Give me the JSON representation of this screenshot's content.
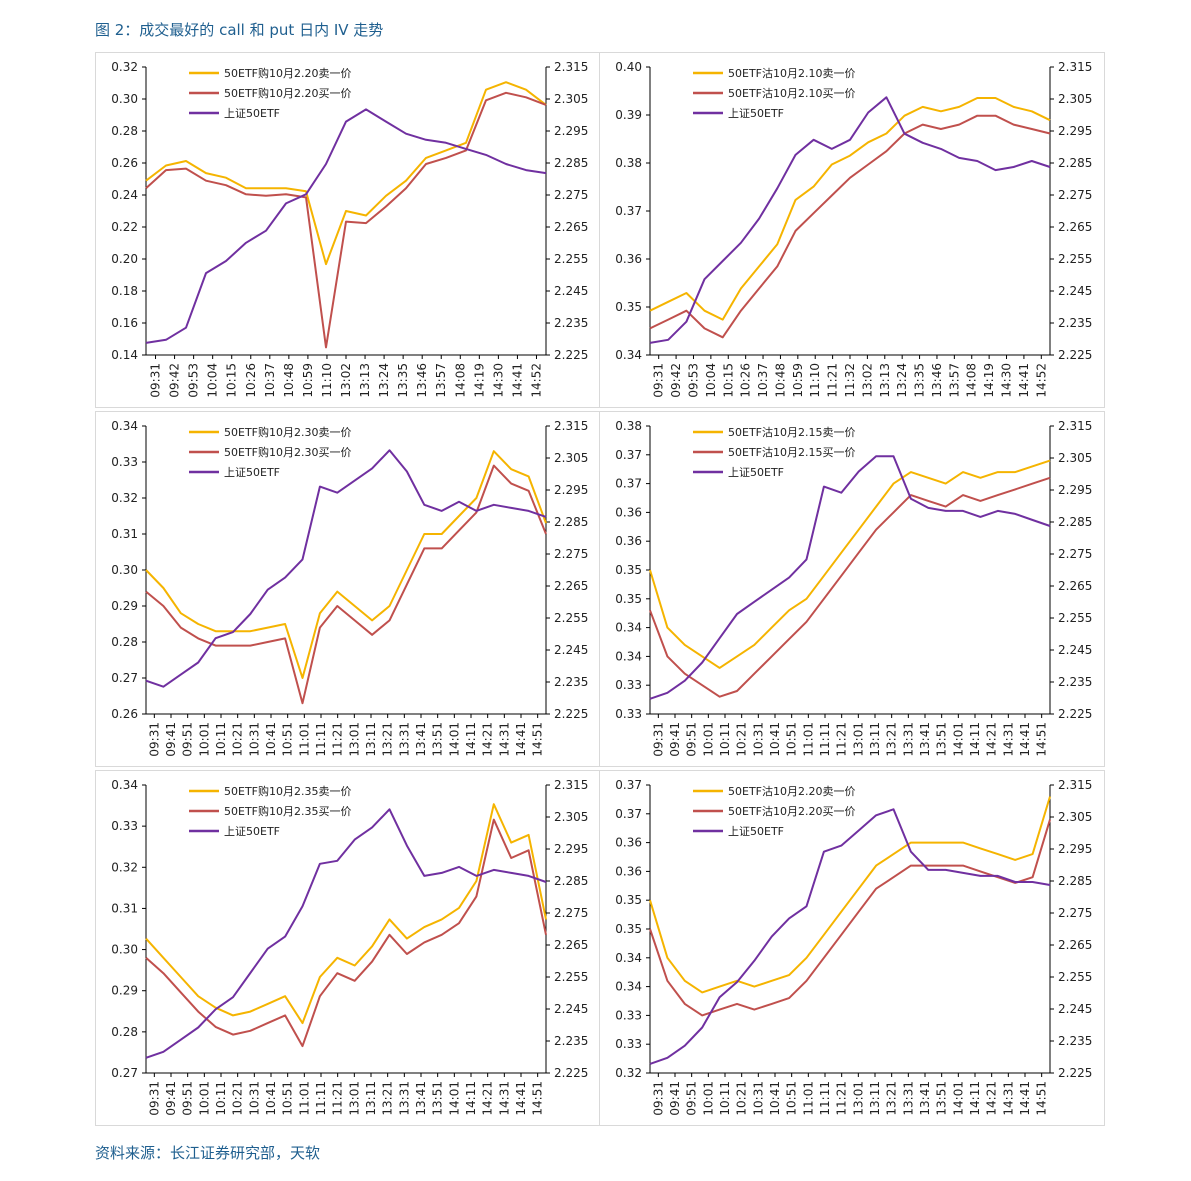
{
  "figure": {
    "title": "图 2：成交最好的 call 和 put 日内 IV 走势",
    "source": "资料来源：长江证券研究部，天软"
  },
  "colors": {
    "sell": "#F5B400",
    "buy": "#C0504D",
    "etf": "#7030A0"
  },
  "chart_data": [
    {
      "type": "line",
      "legend": [
        "50ETF购10月2.20卖一价",
        "50ETF购10月2.20买一价",
        "上证50ETF"
      ],
      "x_ticks": [
        "09:31",
        "09:42",
        "09:53",
        "10:04",
        "10:15",
        "10:26",
        "10:37",
        "10:48",
        "10:59",
        "11:10",
        "13:02",
        "13:13",
        "13:24",
        "13:35",
        "13:46",
        "13:57",
        "14:08",
        "14:19",
        "14:30",
        "14:41",
        "14:52"
      ],
      "ylim_left": [
        0.14,
        0.33
      ],
      "yticks_left": [
        "0.14",
        "0.16",
        "0.18",
        "0.20",
        "0.22",
        "0.24",
        "0.26",
        "0.28",
        "0.30",
        "0.32"
      ],
      "ylim_right": [
        2.225,
        2.32
      ],
      "yticks_right": [
        "2.225",
        "2.235",
        "2.245",
        "2.255",
        "2.265",
        "2.275",
        "2.285",
        "2.295",
        "2.305",
        "2.315"
      ],
      "series": [
        {
          "name": "50ETF购10月2.20卖一价",
          "axis": "left",
          "values": [
            0.255,
            0.265,
            0.268,
            0.26,
            0.257,
            0.25,
            0.25,
            0.25,
            0.248,
            0.2,
            0.235,
            0.232,
            0.245,
            0.255,
            0.27,
            0.275,
            0.28,
            0.315,
            0.32,
            0.315,
            0.305
          ]
        },
        {
          "name": "50ETF购10月2.20买一价",
          "axis": "left",
          "values": [
            0.25,
            0.262,
            0.263,
            0.255,
            0.252,
            0.246,
            0.245,
            0.246,
            0.244,
            0.145,
            0.228,
            0.227,
            0.238,
            0.25,
            0.266,
            0.27,
            0.275,
            0.308,
            0.313,
            0.31,
            0.305
          ]
        },
        {
          "name": "上证50ETF",
          "axis": "right",
          "values": [
            2.229,
            2.23,
            2.234,
            2.252,
            2.256,
            2.262,
            2.266,
            2.275,
            2.278,
            2.288,
            2.302,
            2.306,
            2.302,
            2.298,
            2.296,
            2.295,
            2.293,
            2.291,
            2.288,
            2.286,
            2.285
          ]
        }
      ]
    },
    {
      "type": "line",
      "legend": [
        "50ETF沽10月2.10卖一价",
        "50ETF沽10月2.10买一价",
        "上证50ETF"
      ],
      "x_ticks": [
        "09:31",
        "09:42",
        "09:53",
        "10:04",
        "10:15",
        "10:26",
        "10:37",
        "10:48",
        "10:59",
        "11:10",
        "11:21",
        "11:32",
        "13:02",
        "13:13",
        "13:24",
        "13:35",
        "13:46",
        "13:57",
        "14:08",
        "14:19",
        "14:30",
        "14:41",
        "14:52"
      ],
      "ylim_left": [
        0.34,
        0.405
      ],
      "yticks_left": [
        "0.34",
        "0.35",
        "0.36",
        "0.37",
        "0.38",
        "0.39",
        "0.40"
      ],
      "ylim_right": [
        2.225,
        2.32
      ],
      "yticks_right": [
        "2.225",
        "2.235",
        "2.245",
        "2.255",
        "2.265",
        "2.275",
        "2.285",
        "2.295",
        "2.305",
        "2.315"
      ],
      "series": [
        {
          "name": "50ETF沽10月2.10卖一价",
          "axis": "left",
          "values": [
            0.35,
            0.352,
            0.354,
            0.35,
            0.348,
            0.355,
            0.36,
            0.365,
            0.375,
            0.378,
            0.383,
            0.385,
            0.388,
            0.39,
            0.394,
            0.396,
            0.395,
            0.396,
            0.398,
            0.398,
            0.396,
            0.395,
            0.393
          ]
        },
        {
          "name": "50ETF沽10月2.10买一价",
          "axis": "left",
          "values": [
            0.346,
            0.348,
            0.35,
            0.346,
            0.344,
            0.35,
            0.355,
            0.36,
            0.368,
            0.372,
            0.376,
            0.38,
            0.383,
            0.386,
            0.39,
            0.392,
            0.391,
            0.392,
            0.394,
            0.394,
            0.392,
            0.391,
            0.39
          ]
        },
        {
          "name": "上证50ETF",
          "axis": "right",
          "values": [
            2.229,
            2.23,
            2.236,
            2.25,
            2.256,
            2.262,
            2.27,
            2.28,
            2.291,
            2.296,
            2.293,
            2.296,
            2.305,
            2.31,
            2.298,
            2.295,
            2.293,
            2.29,
            2.289,
            2.286,
            2.287,
            2.289,
            2.287
          ]
        }
      ]
    },
    {
      "type": "line",
      "legend": [
        "50ETF购10月2.30卖一价",
        "50ETF购10月2.30买一价",
        "上证50ETF"
      ],
      "x_ticks": [
        "09:31",
        "09:41",
        "09:51",
        "10:01",
        "10:11",
        "10:21",
        "10:31",
        "10:41",
        "10:51",
        "11:01",
        "11:11",
        "11:21",
        "13:01",
        "13:11",
        "13:21",
        "13:31",
        "13:41",
        "13:51",
        "14:01",
        "14:11",
        "14:21",
        "14:31",
        "14:41",
        "14:51"
      ],
      "ylim_left": [
        0.26,
        0.34
      ],
      "yticks_left": [
        "0.26",
        "0.27",
        "0.28",
        "0.29",
        "0.30",
        "0.31",
        "0.32",
        "0.33",
        "0.34"
      ],
      "ylim_right": [
        2.225,
        2.32
      ],
      "yticks_right": [
        "2.225",
        "2.235",
        "2.245",
        "2.255",
        "2.265",
        "2.275",
        "2.285",
        "2.295",
        "2.305",
        "2.315"
      ],
      "series": [
        {
          "name": "50ETF购10月2.30卖一价",
          "axis": "left",
          "values": [
            0.3,
            0.295,
            0.288,
            0.285,
            0.283,
            0.283,
            0.283,
            0.284,
            0.285,
            0.27,
            0.288,
            0.294,
            0.29,
            0.286,
            0.29,
            0.3,
            0.31,
            0.31,
            0.315,
            0.32,
            0.333,
            0.328,
            0.326,
            0.313
          ]
        },
        {
          "name": "50ETF购10月2.30买一价",
          "axis": "left",
          "values": [
            0.294,
            0.29,
            0.284,
            0.281,
            0.279,
            0.279,
            0.279,
            0.28,
            0.281,
            0.263,
            0.284,
            0.29,
            0.286,
            0.282,
            0.286,
            0.296,
            0.306,
            0.306,
            0.311,
            0.316,
            0.329,
            0.324,
            0.322,
            0.31
          ]
        },
        {
          "name": "上证50ETF",
          "axis": "right",
          "values": [
            2.236,
            2.234,
            2.238,
            2.242,
            2.25,
            2.252,
            2.258,
            2.266,
            2.27,
            2.276,
            2.3,
            2.298,
            2.302,
            2.306,
            2.312,
            2.305,
            2.294,
            2.292,
            2.295,
            2.292,
            2.294,
            2.293,
            2.292,
            2.29
          ]
        }
      ]
    },
    {
      "type": "line",
      "legend": [
        "50ETF沽10月2.15卖一价",
        "50ETF沽10月2.15买一价",
        "上证50ETF"
      ],
      "x_ticks": [
        "09:31",
        "09:41",
        "09:51",
        "10:01",
        "10:11",
        "10:21",
        "10:31",
        "10:41",
        "10:51",
        "11:01",
        "11:11",
        "11:21",
        "13:01",
        "13:11",
        "13:21",
        "13:31",
        "13:41",
        "13:51",
        "14:01",
        "14:11",
        "14:21",
        "14:31",
        "14:41",
        "14:51"
      ],
      "ylim_left": [
        0.33,
        0.38
      ],
      "yticks_left": [
        "0.33",
        "0.33",
        "0.34",
        "0.34",
        "0.35",
        "0.35",
        "0.36",
        "0.36",
        "0.37",
        "0.37",
        "0.38"
      ],
      "ylim_right": [
        2.225,
        2.32
      ],
      "yticks_right": [
        "2.225",
        "2.235",
        "2.245",
        "2.255",
        "2.265",
        "2.275",
        "2.285",
        "2.295",
        "2.305",
        "2.315"
      ],
      "series": [
        {
          "name": "50ETF沽10月2.15卖一价",
          "axis": "left",
          "values": [
            0.355,
            0.345,
            0.342,
            0.34,
            0.338,
            0.34,
            0.342,
            0.345,
            0.348,
            0.35,
            0.354,
            0.358,
            0.362,
            0.366,
            0.37,
            0.372,
            0.371,
            0.37,
            0.372,
            0.371,
            0.372,
            0.372,
            0.373,
            0.374
          ]
        },
        {
          "name": "50ETF沽10月2.15买一价",
          "axis": "left",
          "values": [
            0.348,
            0.34,
            0.337,
            0.335,
            0.333,
            0.334,
            0.337,
            0.34,
            0.343,
            0.346,
            0.35,
            0.354,
            0.358,
            0.362,
            0.365,
            0.368,
            0.367,
            0.366,
            0.368,
            0.367,
            0.368,
            0.369,
            0.37,
            0.371
          ]
        },
        {
          "name": "上证50ETF",
          "axis": "right",
          "values": [
            2.23,
            2.232,
            2.236,
            2.242,
            2.25,
            2.258,
            2.262,
            2.266,
            2.27,
            2.276,
            2.3,
            2.298,
            2.305,
            2.31,
            2.31,
            2.296,
            2.293,
            2.292,
            2.292,
            2.29,
            2.292,
            2.291,
            2.289,
            2.287
          ]
        }
      ]
    },
    {
      "type": "line",
      "legend": [
        "50ETF购10月2.35卖一价",
        "50ETF购10月2.35买一价",
        "上证50ETF"
      ],
      "x_ticks": [
        "09:31",
        "09:41",
        "09:51",
        "10:01",
        "10:11",
        "10:21",
        "10:31",
        "10:41",
        "10:51",
        "11:01",
        "11:11",
        "11:21",
        "13:01",
        "13:11",
        "13:21",
        "13:31",
        "13:41",
        "13:51",
        "14:01",
        "14:11",
        "14:21",
        "14:31",
        "14:41",
        "14:51"
      ],
      "ylim_left": [
        0.27,
        0.345
      ],
      "yticks_left": [
        "0.27",
        "0.28",
        "0.29",
        "0.30",
        "0.31",
        "0.32",
        "0.33",
        "0.34"
      ],
      "ylim_right": [
        2.225,
        2.32
      ],
      "yticks_right": [
        "2.225",
        "2.235",
        "2.245",
        "2.255",
        "2.265",
        "2.275",
        "2.285",
        "2.295",
        "2.305",
        "2.315"
      ],
      "series": [
        {
          "name": "50ETF购10月2.35卖一价",
          "axis": "left",
          "values": [
            0.305,
            0.3,
            0.295,
            0.29,
            0.287,
            0.285,
            0.286,
            0.288,
            0.29,
            0.283,
            0.295,
            0.3,
            0.298,
            0.303,
            0.31,
            0.305,
            0.308,
            0.31,
            0.313,
            0.32,
            0.34,
            0.33,
            0.332,
            0.31
          ]
        },
        {
          "name": "50ETF购10月2.35买一价",
          "axis": "left",
          "values": [
            0.3,
            0.296,
            0.291,
            0.286,
            0.282,
            0.28,
            0.281,
            0.283,
            0.285,
            0.277,
            0.29,
            0.296,
            0.294,
            0.299,
            0.306,
            0.301,
            0.304,
            0.306,
            0.309,
            0.316,
            0.336,
            0.326,
            0.328,
            0.306
          ]
        },
        {
          "name": "上证50ETF",
          "axis": "right",
          "values": [
            2.23,
            2.232,
            2.236,
            2.24,
            2.246,
            2.25,
            2.258,
            2.266,
            2.27,
            2.28,
            2.294,
            2.295,
            2.302,
            2.306,
            2.312,
            2.3,
            2.29,
            2.291,
            2.293,
            2.29,
            2.292,
            2.291,
            2.29,
            2.288
          ]
        }
      ]
    },
    {
      "type": "line",
      "legend": [
        "50ETF沽10月2.20卖一价",
        "50ETF沽10月2.20买一价",
        "上证50ETF"
      ],
      "x_ticks": [
        "09:31",
        "09:41",
        "09:51",
        "10:01",
        "10:11",
        "10:21",
        "10:31",
        "10:41",
        "10:51",
        "11:01",
        "11:11",
        "11:21",
        "13:01",
        "13:11",
        "13:21",
        "13:31",
        "13:41",
        "13:51",
        "14:01",
        "14:11",
        "14:21",
        "14:31",
        "14:41",
        "14:51"
      ],
      "ylim_left": [
        0.32,
        0.37
      ],
      "yticks_left": [
        "0.32",
        "0.33",
        "0.33",
        "0.34",
        "0.34",
        "0.35",
        "0.35",
        "0.36",
        "0.36",
        "0.37",
        "0.37"
      ],
      "ylim_right": [
        2.225,
        2.32
      ],
      "yticks_right": [
        "2.225",
        "2.235",
        "2.245",
        "2.255",
        "2.265",
        "2.275",
        "2.285",
        "2.295",
        "2.305",
        "2.315"
      ],
      "series": [
        {
          "name": "50ETF沽10月2.20卖一价",
          "axis": "left",
          "values": [
            0.35,
            0.34,
            0.336,
            0.334,
            0.335,
            0.336,
            0.335,
            0.336,
            0.337,
            0.34,
            0.344,
            0.348,
            0.352,
            0.356,
            0.358,
            0.36,
            0.36,
            0.36,
            0.36,
            0.359,
            0.358,
            0.357,
            0.358,
            0.368
          ]
        },
        {
          "name": "50ETF沽10月2.20买一价",
          "axis": "left",
          "values": [
            0.345,
            0.336,
            0.332,
            0.33,
            0.331,
            0.332,
            0.331,
            0.332,
            0.333,
            0.336,
            0.34,
            0.344,
            0.348,
            0.352,
            0.354,
            0.356,
            0.356,
            0.356,
            0.356,
            0.355,
            0.354,
            0.353,
            0.354,
            0.364
          ]
        },
        {
          "name": "上证50ETF",
          "axis": "right",
          "values": [
            2.228,
            2.23,
            2.234,
            2.24,
            2.25,
            2.255,
            2.262,
            2.27,
            2.276,
            2.28,
            2.298,
            2.3,
            2.305,
            2.31,
            2.312,
            2.298,
            2.292,
            2.292,
            2.291,
            2.29,
            2.29,
            2.288,
            2.288,
            2.287
          ]
        }
      ]
    }
  ]
}
